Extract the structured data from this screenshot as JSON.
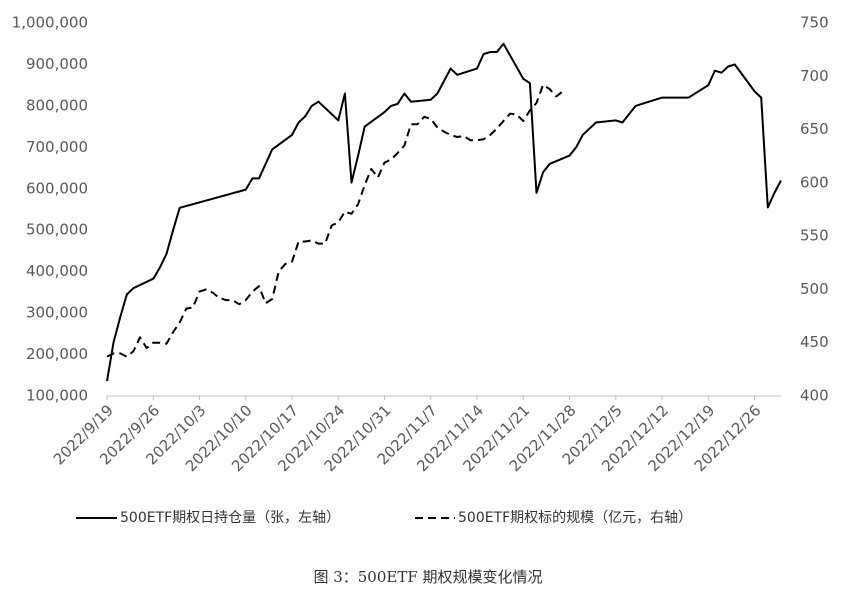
{
  "chart_data": {
    "type": "line",
    "title": "图 3：500ETF 期权规模变化情况",
    "xlim": [
      "2022/9/19",
      "2022/12/30"
    ],
    "xticks": [
      "2022/9/19",
      "2022/9/26",
      "2022/10/3",
      "2022/10/10",
      "2022/10/17",
      "2022/10/24",
      "2022/10/31",
      "2022/11/7",
      "2022/11/14",
      "2022/11/21",
      "2022/11/28",
      "2022/12/5",
      "2022/12/12",
      "2022/12/19",
      "2022/12/26"
    ],
    "ylim": [
      100000,
      1000000
    ],
    "yticks": [
      {
        "value": 100000,
        "label": "100,000"
      },
      {
        "value": 200000,
        "label": "200,000"
      },
      {
        "value": 300000,
        "label": "300,000"
      },
      {
        "value": 400000,
        "label": "400,000"
      },
      {
        "value": 500000,
        "label": "500,000"
      },
      {
        "value": 600000,
        "label": "600,000"
      },
      {
        "value": 700000,
        "label": "700,000"
      },
      {
        "value": 800000,
        "label": "800,000"
      },
      {
        "value": 900000,
        "label": "900,000"
      },
      {
        "value": 1000000,
        "label": "1,000,000"
      }
    ],
    "y2lim": [
      400,
      750
    ],
    "y2ticks": [
      400,
      450,
      500,
      550,
      600,
      650,
      700,
      750
    ],
    "series": [
      {
        "name": "500ETF期权日持仓量（张，左轴）",
        "color": "#000000",
        "dash": false,
        "x": [
          "2022/9/19",
          "2022/9/20",
          "2022/9/21",
          "2022/9/22",
          "2022/9/23",
          "2022/9/26",
          "2022/9/27",
          "2022/9/28",
          "2022/9/29",
          "2022/9/30",
          "2022/10/10",
          "2022/10/11",
          "2022/10/12",
          "2022/10/13",
          "2022/10/14",
          "2022/10/17",
          "2022/10/18",
          "2022/10/19",
          "2022/10/20",
          "2022/10/21",
          "2022/10/24",
          "2022/10/25",
          "2022/10/26",
          "2022/10/27",
          "2022/10/28",
          "2022/10/31",
          "2022/11/1",
          "2022/11/2",
          "2022/11/3",
          "2022/11/4",
          "2022/11/7",
          "2022/11/8",
          "2022/11/9",
          "2022/11/10",
          "2022/11/11",
          "2022/11/14",
          "2022/11/15",
          "2022/11/16",
          "2022/11/17",
          "2022/11/18",
          "2022/11/21",
          "2022/11/22",
          "2022/11/23",
          "2022/11/24",
          "2022/11/25",
          "2022/11/28",
          "2022/11/29",
          "2022/11/30",
          "2022/12/1",
          "2022/12/2",
          "2022/12/5",
          "2022/12/6",
          "2022/12/7",
          "2022/12/8",
          "2022/12/9",
          "2022/12/12",
          "2022/12/16",
          "2022/12/19",
          "2022/12/20",
          "2022/12/21",
          "2022/12/22",
          "2022/12/23",
          "2022/12/26",
          "2022/12/27",
          "2022/12/28",
          "2022/12/29",
          "2022/12/30"
        ],
        "values": [
          136000,
          230000,
          290000,
          345000,
          360000,
          383000,
          410000,
          443000,
          500000,
          554000,
          598000,
          625000,
          625000,
          660000,
          695000,
          730000,
          760000,
          775000,
          800000,
          810000,
          765000,
          830000,
          615000,
          680000,
          750000,
          785000,
          800000,
          805000,
          830000,
          810000,
          815000,
          830000,
          860000,
          890000,
          875000,
          890000,
          925000,
          930000,
          930000,
          950000,
          865000,
          855000,
          590000,
          640000,
          660000,
          680000,
          700000,
          730000,
          745000,
          760000,
          765000,
          760000,
          780000,
          800000,
          805000,
          820000,
          820000,
          850000,
          885000,
          880000,
          895000,
          900000,
          835000,
          820000,
          555000,
          590000,
          620000
        ]
      },
      {
        "name": "500ETF期权标的规模（亿元，右轴）",
        "color": "#000000",
        "dash": true,
        "axis": "y2",
        "x": [
          "2022/9/19",
          "2022/9/20",
          "2022/9/21",
          "2022/9/22",
          "2022/9/23",
          "2022/9/24",
          "2022/9/25",
          "2022/9/26",
          "2022/9/27",
          "2022/9/28",
          "2022/9/29",
          "2022/9/30",
          "2022/10/1",
          "2022/10/2",
          "2022/10/3",
          "2022/10/4",
          "2022/10/5",
          "2022/10/6",
          "2022/10/7",
          "2022/10/8",
          "2022/10/9",
          "2022/10/10",
          "2022/10/11",
          "2022/10/12",
          "2022/10/13",
          "2022/10/14",
          "2022/10/15",
          "2022/10/16",
          "2022/10/17",
          "2022/10/18",
          "2022/10/19",
          "2022/10/20",
          "2022/10/21",
          "2022/10/22",
          "2022/10/23",
          "2022/10/24",
          "2022/10/25",
          "2022/10/26",
          "2022/10/27",
          "2022/10/28",
          "2022/10/29",
          "2022/10/30",
          "2022/10/31",
          "2022/11/1",
          "2022/11/2",
          "2022/11/3",
          "2022/11/4",
          "2022/11/5",
          "2022/11/6",
          "2022/11/7",
          "2022/11/8",
          "2022/11/9",
          "2022/11/10",
          "2022/11/11",
          "2022/11/12",
          "2022/11/13",
          "2022/11/14",
          "2022/11/15",
          "2022/11/16",
          "2022/11/17",
          "2022/11/18",
          "2022/11/19",
          "2022/11/20",
          "2022/11/21",
          "2022/11/22",
          "2022/11/23",
          "2022/11/24",
          "2022/11/25",
          "2022/11/26",
          "2022/11/27"
        ],
        "values": [
          437,
          440,
          440,
          437,
          442,
          455,
          445,
          450,
          450,
          449,
          460,
          469,
          482,
          483,
          498,
          500,
          497,
          492,
          490,
          490,
          486,
          490,
          498,
          503,
          487,
          491,
          517,
          524,
          526,
          545,
          545,
          546,
          543,
          543,
          560,
          563,
          573,
          571,
          580,
          598,
          613,
          605,
          619,
          622,
          628,
          635,
          655,
          655,
          662,
          660,
          652,
          648,
          645,
          643,
          644,
          640,
          640,
          641,
          645,
          651,
          658,
          665,
          664,
          658,
          668,
          675,
          692,
          688,
          681,
          686
        ]
      }
    ]
  }
}
